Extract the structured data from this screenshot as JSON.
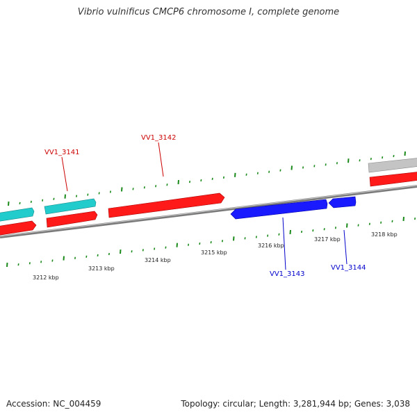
{
  "title": "Vibrio vulnificus CMCP6 chromosome I, complete genome",
  "footer": {
    "accession": "Accession: NC_004459",
    "stats": "Topology: circular; Length: 3,281,944 bp; Genes: 3,038"
  },
  "ruler": {
    "labels": [
      "3212 kbp",
      "3213 kbp",
      "3214 kbp",
      "3215 kbp",
      "3216 kbp",
      "3217 kbp",
      "3218 kbp"
    ]
  },
  "genes": [
    {
      "id": "VV1_3141",
      "label": "VV1_3141",
      "strand": "forward"
    },
    {
      "id": "VV1_3142",
      "label": "VV1_3142",
      "strand": "forward"
    },
    {
      "id": "VV1_3143",
      "label": "VV1_3143",
      "strand": "reverse"
    },
    {
      "id": "VV1_3144",
      "label": "VV1_3144",
      "strand": "reverse"
    }
  ],
  "colors": {
    "forward": "#ff0000",
    "reverse": "#0000ee",
    "cyan": "#22cccc",
    "grey": "#bbbbbb",
    "backbone": "#888888",
    "tick": "#1a8a1a",
    "forward_label": "#cc0000",
    "reverse_label": "#0000cc"
  }
}
